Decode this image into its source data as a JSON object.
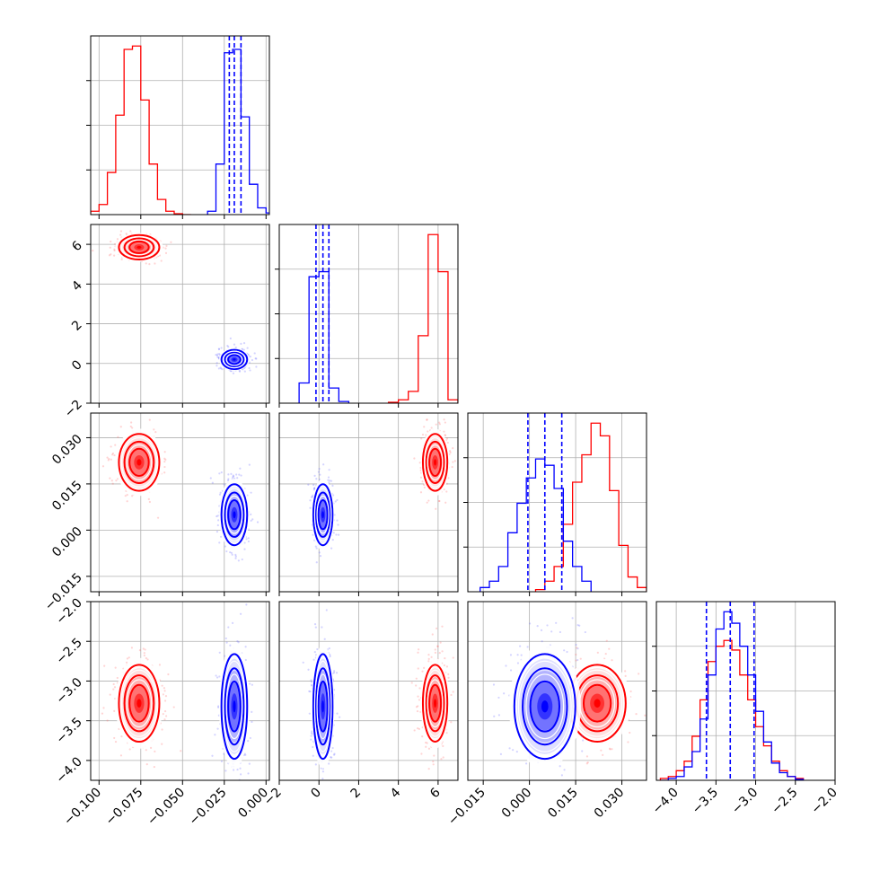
{
  "chart_data": {
    "type": "corner",
    "title": "",
    "series": [
      {
        "name": "",
        "color": "#ff0000"
      },
      {
        "name": "",
        "color": "#0000ff"
      }
    ],
    "quantile_lines_color": "#0000ff",
    "grid": true,
    "parameters": [
      {
        "index": 0,
        "range": [
          -0.105,
          0.002
        ],
        "tick_values": [
          -0.1,
          -0.075,
          -0.05,
          -0.025,
          0.0
        ],
        "tick_labels": [
          "−0.100",
          "−0.075",
          "−0.050",
          "−0.025",
          "0.000"
        ]
      },
      {
        "index": 1,
        "range": [
          -2.0,
          7.0
        ],
        "tick_values": [
          -2,
          0,
          2,
          4,
          6
        ],
        "tick_labels": [
          "−2",
          "0",
          "2",
          "4",
          "6"
        ]
      },
      {
        "index": 2,
        "range": [
          -0.02,
          0.038
        ],
        "tick_values": [
          -0.015,
          0.0,
          0.015,
          0.03
        ],
        "tick_labels": [
          "−0.015",
          "0.000",
          "0.015",
          "0.030"
        ]
      },
      {
        "index": 3,
        "range": [
          -4.25,
          -2.0
        ],
        "tick_values": [
          -4.0,
          -3.5,
          -3.0,
          -2.5,
          -2.0
        ],
        "tick_labels": [
          "−4.0",
          "−3.5",
          "−3.0",
          "−2.5",
          "−2.0"
        ]
      }
    ],
    "posteriors": [
      {
        "series": 0,
        "mean": [
          -0.076,
          5.85,
          0.022,
          -3.28
        ],
        "std": [
          0.0055,
          0.28,
          0.0042,
          0.22
        ]
      },
      {
        "series": 1,
        "mean": [
          -0.019,
          0.2,
          0.005,
          -3.32
        ],
        "std": [
          0.0035,
          0.22,
          0.0045,
          0.3
        ]
      }
    ],
    "quantiles": [
      [
        -0.022,
        -0.019,
        -0.015
      ],
      [
        -0.15,
        0.2,
        0.5
      ],
      [
        -0.0005,
        0.005,
        0.0105
      ],
      [
        -3.62,
        -3.32,
        -3.02
      ]
    ],
    "marginals": [
      {
        "param": 0,
        "series": [
          {
            "series": 0,
            "bins": [
              -0.105,
              -0.1,
              -0.095,
              -0.09,
              -0.085,
              -0.08,
              -0.075,
              -0.07,
              -0.065,
              -0.06,
              -0.055,
              -0.05,
              -0.045
            ],
            "counts": [
              0.02,
              0.06,
              0.25,
              0.59,
              0.98,
              1.0,
              0.68,
              0.3,
              0.09,
              0.02,
              0.005,
              0.0
            ]
          },
          {
            "series": 1,
            "bins": [
              -0.035,
              -0.03,
              -0.025,
              -0.02,
              -0.015,
              -0.01,
              -0.005,
              0.0,
              0.005
            ],
            "counts": [
              0.02,
              0.3,
              0.96,
              0.98,
              0.58,
              0.18,
              0.04,
              0.01
            ]
          }
        ]
      },
      {
        "param": 1,
        "series": [
          {
            "series": 0,
            "bins": [
              3.5,
              4.0,
              4.5,
              5.0,
              5.5,
              6.0,
              6.5,
              7.0
            ],
            "counts": [
              0.005,
              0.02,
              0.07,
              0.4,
              1.0,
              0.78,
              0.02
            ]
          },
          {
            "series": 1,
            "bins": [
              -1.0,
              -0.5,
              0.0,
              0.5,
              1.0,
              1.5
            ],
            "counts": [
              0.12,
              0.75,
              0.78,
              0.09,
              0.01
            ]
          }
        ]
      },
      {
        "param": 2,
        "series": [
          {
            "series": 0,
            "bins": [
              0.002,
              0.005,
              0.008,
              0.011,
              0.014,
              0.017,
              0.02,
              0.023,
              0.026,
              0.029,
              0.032,
              0.035,
              0.038
            ],
            "counts": [
              0.01,
              0.05,
              0.12,
              0.32,
              0.52,
              0.65,
              0.8,
              0.74,
              0.48,
              0.22,
              0.07,
              0.02
            ]
          },
          {
            "series": 1,
            "bins": [
              -0.016,
              -0.013,
              -0.01,
              -0.007,
              -0.004,
              -0.001,
              0.002,
              0.005,
              0.008,
              0.011,
              0.014,
              0.017,
              0.02
            ],
            "counts": [
              0.02,
              0.05,
              0.12,
              0.28,
              0.42,
              0.54,
              0.63,
              0.6,
              0.49,
              0.24,
              0.12,
              0.05
            ]
          }
        ]
      },
      {
        "param": 3,
        "series": [
          {
            "series": 0,
            "bins": [
              -4.2,
              -4.1,
              -4.0,
              -3.9,
              -3.8,
              -3.7,
              -3.6,
              -3.5,
              -3.4,
              -3.3,
              -3.2,
              -3.1,
              -3.0,
              -2.9,
              -2.8,
              -2.7,
              -2.6,
              -2.5,
              -2.4
            ],
            "counts": [
              0.01,
              0.02,
              0.05,
              0.1,
              0.23,
              0.42,
              0.62,
              0.7,
              0.73,
              0.68,
              0.55,
              0.42,
              0.28,
              0.18,
              0.1,
              0.05,
              0.02,
              0.01
            ]
          },
          {
            "series": 1,
            "bins": [
              -4.2,
              -4.1,
              -4.0,
              -3.9,
              -3.8,
              -3.7,
              -3.6,
              -3.5,
              -3.4,
              -3.3,
              -3.2,
              -3.1,
              -3.0,
              -2.9,
              -2.8,
              -2.7,
              -2.6,
              -2.5,
              -2.4
            ],
            "counts": [
              0.0,
              0.01,
              0.02,
              0.07,
              0.15,
              0.32,
              0.55,
              0.79,
              0.88,
              0.82,
              0.7,
              0.55,
              0.36,
              0.2,
              0.09,
              0.04,
              0.02,
              0.005
            ]
          }
        ]
      }
    ]
  }
}
